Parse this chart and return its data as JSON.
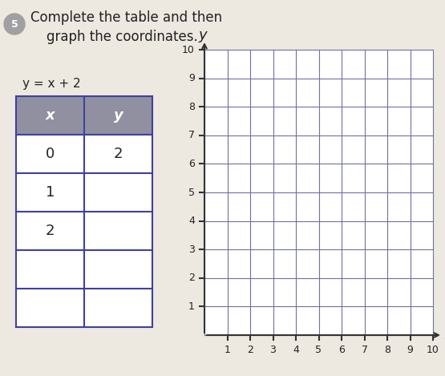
{
  "title_line1": "Complete the table and then",
  "title_line2": "graph the coordinates.",
  "equation": "y = x + 2",
  "table_header": [
    "x",
    "y"
  ],
  "table_rows": [
    [
      "0",
      "2"
    ],
    [
      "1",
      ""
    ],
    [
      "2",
      ""
    ],
    [
      "",
      ""
    ],
    [
      "",
      ""
    ]
  ],
  "background_color": "#ede8e0",
  "grid_line_color": "#7070a0",
  "grid_bg_color": "#ffffff",
  "table_header_bg": "#9090a0",
  "table_border_color": "#4040a0",
  "text_color": "#222222",
  "circle_fill": "#a0a0a0",
  "bullet_num": "5"
}
